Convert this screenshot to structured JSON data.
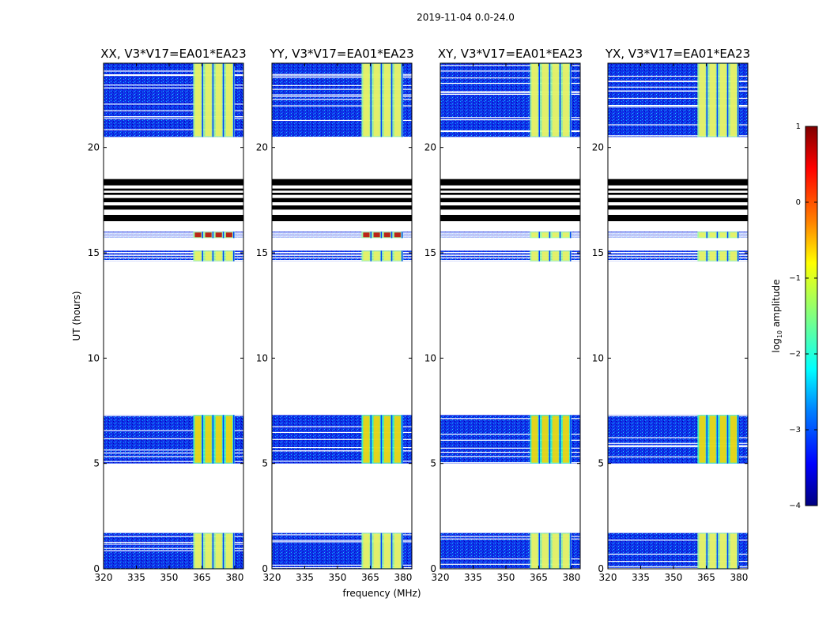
{
  "figure": {
    "suptitle": "2019-11-04 0.0-24.0",
    "ylabel": "UT (hours)",
    "xlabel": "frequency (MHz)",
    "colorbar": {
      "label": "log10 amplitude",
      "label_prefix": "log",
      "label_sub": "10",
      "label_suffix": " amplitude",
      "colormap": "jet",
      "range": [
        -4,
        1
      ],
      "ticks": [
        -4,
        -3,
        -2,
        -1,
        0,
        1
      ],
      "tick_labels": [
        "−4",
        "−3",
        "−2",
        "−1",
        "0",
        "1"
      ],
      "colors": [
        "#00007f",
        "#0000ff",
        "#0080ff",
        "#00ffff",
        "#80ff80",
        "#ffff00",
        "#ff8000",
        "#ff0000",
        "#7f0000"
      ]
    }
  },
  "chart_data": [
    {
      "type": "heatmap",
      "title": "XX, V3*V17=EA01*EA23",
      "xlabel": "",
      "ylabel": "UT (hours)",
      "xlim": [
        320,
        384
      ],
      "ylim": [
        0,
        24
      ],
      "xticks": [
        320,
        335,
        350,
        365,
        380
      ],
      "yticks": [
        0,
        5,
        10,
        15,
        20
      ],
      "ytick_labels": [
        "0",
        "5",
        "10",
        "15",
        "20"
      ],
      "data_bands_hours": [
        [
          0,
          1.7
        ],
        [
          5.0,
          7.3
        ],
        [
          14.6,
          15.1
        ],
        [
          15.7,
          16.0
        ],
        [
          20.5,
          24.0
        ]
      ],
      "rfi_band_mhz": [
        361,
        380
      ],
      "flagged_hours": [
        [
          16.5,
          18.5
        ]
      ]
    },
    {
      "type": "heatmap",
      "title": "YY, V3*V17=EA01*EA23",
      "xlabel": "frequency (MHz)",
      "ylabel": "",
      "xlim": [
        320,
        384
      ],
      "ylim": [
        0,
        24
      ],
      "xticks": [
        320,
        335,
        350,
        365,
        380
      ],
      "yticks": [
        0,
        5,
        10,
        15,
        20
      ],
      "ytick_labels": [
        "0",
        "5",
        "10",
        "15",
        "20"
      ],
      "data_bands_hours": [
        [
          0,
          1.7
        ],
        [
          5.0,
          7.3
        ],
        [
          14.6,
          15.1
        ],
        [
          15.7,
          16.0
        ],
        [
          20.5,
          24.0
        ]
      ],
      "rfi_band_mhz": [
        361,
        380
      ],
      "flagged_hours": [
        [
          16.5,
          18.5
        ]
      ]
    },
    {
      "type": "heatmap",
      "title": "XY, V3*V17=EA01*EA23",
      "xlabel": "",
      "ylabel": "",
      "xlim": [
        320,
        384
      ],
      "ylim": [
        0,
        24
      ],
      "xticks": [
        320,
        335,
        350,
        365,
        380
      ],
      "yticks": [
        0,
        5,
        10,
        15,
        20
      ],
      "ytick_labels": [
        "0",
        "5",
        "10",
        "15",
        "20"
      ],
      "data_bands_hours": [
        [
          0,
          1.7
        ],
        [
          5.0,
          7.3
        ],
        [
          14.6,
          15.1
        ],
        [
          15.7,
          16.0
        ],
        [
          20.5,
          24.0
        ]
      ],
      "rfi_band_mhz": [
        361,
        380
      ],
      "flagged_hours": [
        [
          16.5,
          18.5
        ]
      ]
    },
    {
      "type": "heatmap",
      "title": "YX, V3*V17=EA01*EA23",
      "xlabel": "",
      "ylabel": "",
      "xlim": [
        320,
        384
      ],
      "ylim": [
        0,
        24
      ],
      "xticks": [
        320,
        335,
        350,
        365,
        380
      ],
      "yticks": [
        0,
        5,
        10,
        15,
        20
      ],
      "ytick_labels": [
        "0",
        "5",
        "10",
        "15",
        "20"
      ],
      "data_bands_hours": [
        [
          0,
          1.7
        ],
        [
          5.0,
          7.3
        ],
        [
          14.6,
          15.1
        ],
        [
          15.7,
          16.0
        ],
        [
          20.5,
          24.0
        ]
      ],
      "rfi_band_mhz": [
        361,
        380
      ],
      "flagged_hours": [
        [
          16.5,
          18.5
        ]
      ]
    }
  ]
}
